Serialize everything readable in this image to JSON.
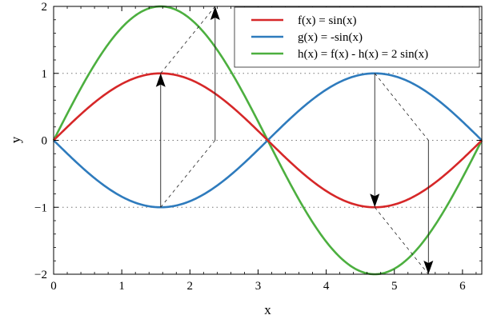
{
  "chart_data": {
    "type": "line",
    "xlabel": "x",
    "ylabel": "y",
    "xlim": [
      0,
      6.2832
    ],
    "ylim": [
      -2,
      2
    ],
    "x_ticks": [
      0,
      1,
      2,
      3,
      4,
      5,
      6
    ],
    "y_ticks": [
      -2,
      -1,
      0,
      1,
      2
    ],
    "x_tick_labels": [
      "0",
      "1",
      "2",
      "3",
      "4",
      "5",
      "6"
    ],
    "y_tick_labels": [
      "−2",
      "−1",
      "0",
      "1",
      "2"
    ],
    "dotted_gridlines_y": [
      -1,
      0,
      1
    ],
    "legend_position": "top-right",
    "series": [
      {
        "name": "f(x) = sin(x)",
        "color": "#d62728",
        "function": "sin(x)",
        "x_range": [
          0,
          6.2832
        ],
        "samples": [
          [
            0,
            0
          ],
          [
            1.5708,
            1
          ],
          [
            3.1416,
            0
          ],
          [
            4.7124,
            -1
          ],
          [
            6.2832,
            0
          ]
        ]
      },
      {
        "name": "g(x) = -sin(x)",
        "color": "#2e7bbd",
        "function": "-sin(x)",
        "x_range": [
          0,
          6.2832
        ],
        "samples": [
          [
            0,
            0
          ],
          [
            1.5708,
            -1
          ],
          [
            3.1416,
            0
          ],
          [
            4.7124,
            1
          ],
          [
            6.2832,
            0
          ]
        ]
      },
      {
        "name": "h(x) = f(x) - h(x) = 2 sin(x)",
        "color": "#4caf3f",
        "function": "2*sin(x)",
        "x_range": [
          0,
          6.2832
        ],
        "samples": [
          [
            0,
            0
          ],
          [
            1.5708,
            2
          ],
          [
            3.1416,
            0
          ],
          [
            4.7124,
            -2
          ],
          [
            6.2832,
            0
          ]
        ]
      }
    ],
    "annotations": {
      "solid_arrows": [
        {
          "from": [
            1.5708,
            -1
          ],
          "to": [
            1.5708,
            1
          ]
        },
        {
          "from": [
            2.37,
            0
          ],
          "to": [
            2.37,
            2
          ]
        },
        {
          "from": [
            4.7124,
            1
          ],
          "to": [
            4.7124,
            -1
          ]
        },
        {
          "from": [
            5.5,
            0
          ],
          "to": [
            5.5,
            -2
          ]
        }
      ],
      "dashed_lines": [
        {
          "from": [
            1.5708,
            -1
          ],
          "to": [
            2.37,
            0
          ]
        },
        {
          "from": [
            1.5708,
            1
          ],
          "to": [
            2.37,
            2
          ]
        },
        {
          "from": [
            4.7124,
            1
          ],
          "to": [
            5.5,
            0
          ]
        },
        {
          "from": [
            4.7124,
            -1
          ],
          "to": [
            5.5,
            -2
          ]
        }
      ]
    }
  }
}
